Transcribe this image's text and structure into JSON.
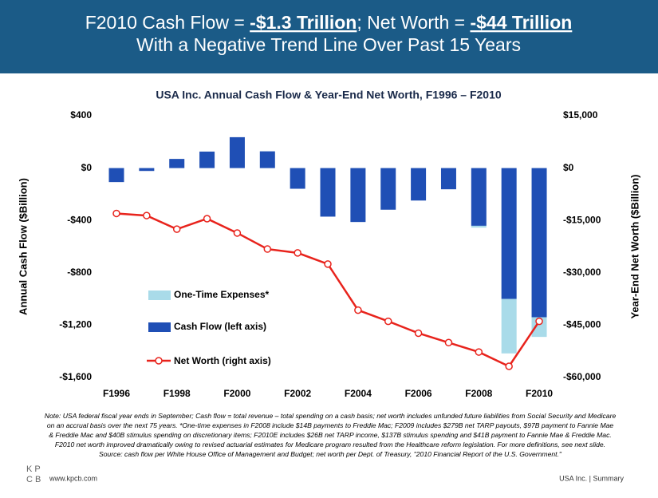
{
  "header": {
    "line1": [
      "F2010 Cash Flow = ",
      "-$1.3 Trillion",
      "; Net Worth = ",
      "-$44 Trillion"
    ],
    "line2": "With a Negative Trend Line Over Past 15 Years"
  },
  "chart_data": {
    "type": "bar",
    "title": "USA Inc. Annual Cash Flow & Year-End Net Worth, F1996 – F2010",
    "ylabel": "Annual Cash Flow ($Billion)",
    "y2label": "Year-End Net Worth ($Billion)",
    "categories": [
      "F1996",
      null,
      "F1998",
      null,
      "F2000",
      null,
      "F2002",
      null,
      "F2004",
      null,
      "F2006",
      null,
      "F2008",
      null,
      "F2010"
    ],
    "series": [
      {
        "name": "One-Time Expenses*",
        "color": "#a9dbe9",
        "values": [
          null,
          null,
          null,
          null,
          null,
          null,
          null,
          null,
          null,
          null,
          null,
          null,
          -14,
          -416,
          -150
        ]
      },
      {
        "name": "Cash Flow (left axis)",
        "color": "#1f4fb5",
        "values": [
          -107,
          -22,
          70,
          126,
          236,
          128,
          -158,
          -371,
          -412,
          -318,
          -248,
          -162,
          -441,
          -1000,
          -1140
        ]
      },
      {
        "name": "Net Worth (right axis)",
        "color": "#e8231c",
        "type": "line",
        "axis": "y2",
        "values": [
          -13000,
          -13600,
          -17500,
          -14500,
          -18600,
          -23200,
          -24300,
          -27500,
          -40700,
          -43900,
          -47300,
          -50000,
          -52700,
          -56800,
          -43900
        ]
      }
    ],
    "ylim": [
      -1600,
      400
    ],
    "yticks": [
      {
        "value": 400,
        "label": "$400"
      },
      {
        "value": 0,
        "label": "$0"
      },
      {
        "value": -400,
        "label": "-$400"
      },
      {
        "value": -800,
        "label": "-$800"
      },
      {
        "value": -1200,
        "label": "-$1,200"
      },
      {
        "value": -1600,
        "label": "-$1,600"
      }
    ],
    "y2lim": [
      -60000,
      15000
    ],
    "y2ticks": [
      {
        "value": 15000,
        "label": "$15,000"
      },
      {
        "value": 0,
        "label": "$0"
      },
      {
        "value": -15000,
        "label": "-$15,000"
      },
      {
        "value": -30000,
        "label": "-$30,000"
      },
      {
        "value": -45000,
        "label": "-$45,000"
      },
      {
        "value": -60000,
        "label": "-$60,000"
      }
    ]
  },
  "note": "Note: USA federal fiscal year ends in September; Cash flow = total revenue – total spending on a cash basis; net worth includes unfunded future liabilities from Social Security and Medicare on an accrual basis over the next 75 years. *One-time expenses in F2008 include $14B payments to Freddie Mac; F2009 includes $279B net TARP payouts, $97B payment to Fannie Mae & Freddie Mac and $40B stimulus spending on discretionary items; F2010E includes $26B net TARP income, $137B stimulus spending and $41B payment to Fannie Mae & Freddie Mac. F2010 net worth improved dramatically owing to revised actuarial estimates for Medicare program resulted from the Healthcare reform legislation. For more definitions, see next slide. Source: cash flow per White House Office of Management and Budget; net worth per Dept. of Treasury, \"2010 Financial Report of the U.S. Government.\"",
  "footer": {
    "logo": [
      "KP",
      "CB"
    ],
    "url": "www.kpcb.com",
    "section": "USA Inc. | Summary"
  }
}
